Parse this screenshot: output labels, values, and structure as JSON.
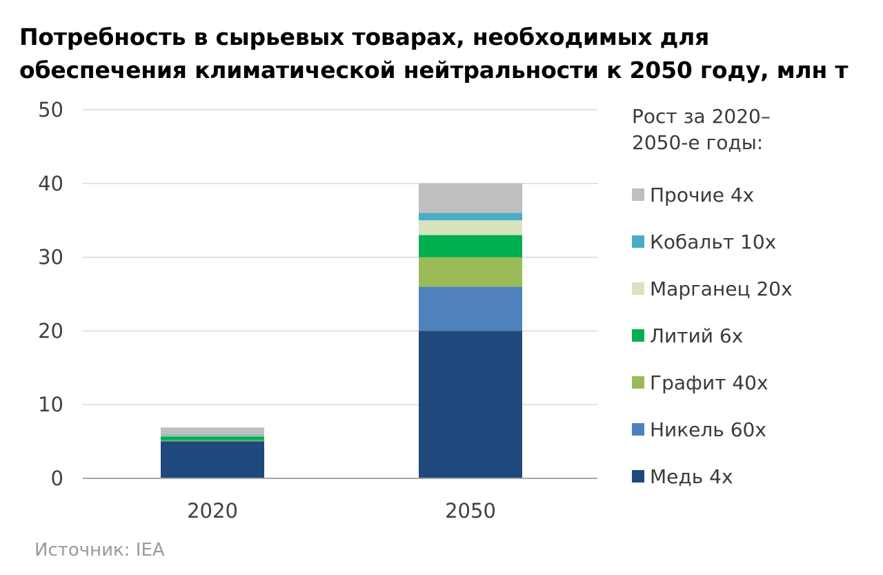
{
  "title_lines": [
    "Потребность в сырьевых товарах, необходимых для",
    "обеспечения климатической нейтральности к 2050 году, млн т"
  ],
  "legend": {
    "title": "Рост за 2020–\n2050-е годы:"
  },
  "source": "Источник: IEA",
  "chart_data": {
    "type": "bar",
    "stacked": true,
    "categories": [
      "2020",
      "2050"
    ],
    "ylim": [
      0,
      50
    ],
    "yticks": [
      0,
      10,
      20,
      30,
      40,
      50
    ],
    "grid": true,
    "legend_position": "right",
    "series": [
      {
        "name": "Медь 4x",
        "color": "#1f497d",
        "values": [
          5,
          20
        ]
      },
      {
        "name": "Никель 60x",
        "color": "#4f81bd",
        "values": [
          0.1,
          6
        ]
      },
      {
        "name": "Графит 40x",
        "color": "#9bbb59",
        "values": [
          0.1,
          4
        ]
      },
      {
        "name": "Литий 6x",
        "color": "#00b050",
        "values": [
          0.5,
          3
        ]
      },
      {
        "name": "Марганец 20x",
        "color": "#d7e4bd",
        "values": [
          0.1,
          2
        ]
      },
      {
        "name": "Кобальт 10x",
        "color": "#4bacc6",
        "values": [
          0.1,
          1
        ]
      },
      {
        "name": "Прочие 4x",
        "color": "#bfbfbf",
        "values": [
          1,
          4
        ]
      }
    ]
  }
}
